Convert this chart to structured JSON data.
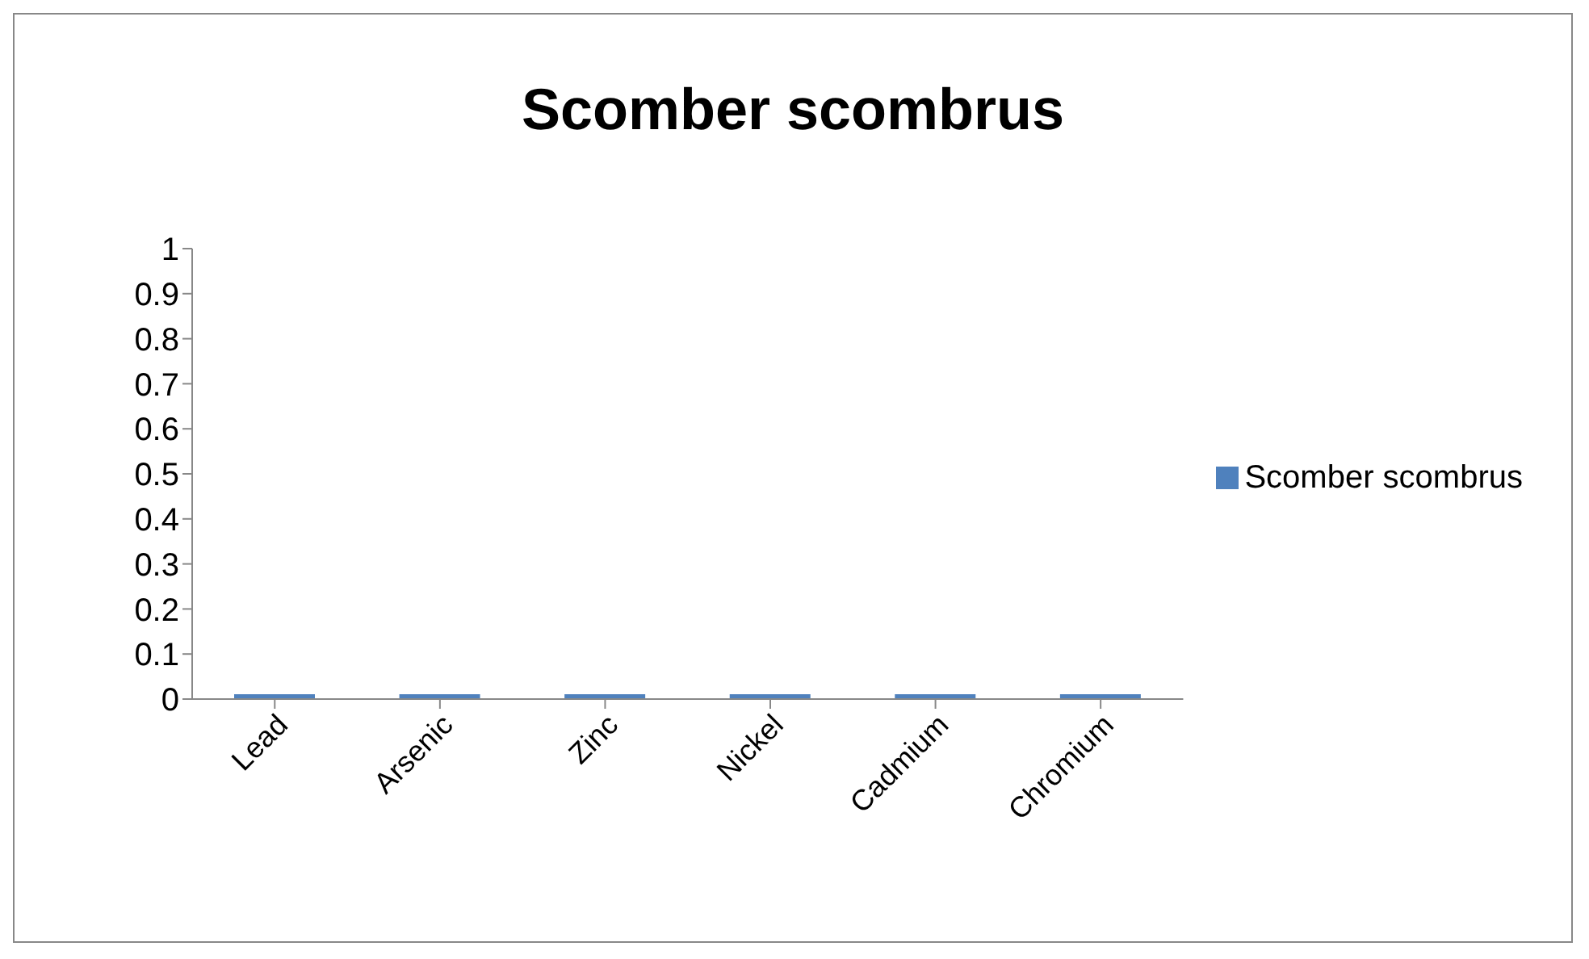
{
  "chart_data": {
    "type": "bar",
    "title": "Scomber scombrus",
    "categories": [
      "Lead",
      "Arsenic",
      "Zinc",
      "Nickel",
      "Cadmium",
      "Chromium"
    ],
    "series": [
      {
        "name": "Scomber scombrus",
        "color": "#4f81bd",
        "values": [
          0,
          0,
          0,
          0,
          0,
          0
        ]
      }
    ],
    "ylim": [
      0,
      1
    ],
    "yticks": [
      0,
      0.1,
      0.2,
      0.3,
      0.4,
      0.5,
      0.6,
      0.7,
      0.8,
      0.9,
      1
    ],
    "legend": "right"
  }
}
